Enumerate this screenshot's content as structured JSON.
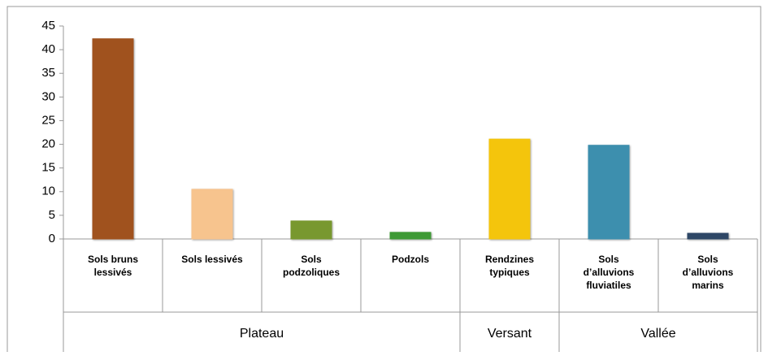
{
  "chart_data": {
    "type": "bar",
    "categories": [
      [
        "Sols bruns",
        "lessivés"
      ],
      [
        "Sols lessivés"
      ],
      [
        "Sols",
        "podzoliques"
      ],
      [
        "Podzols"
      ],
      [
        "Rendzines",
        "typiques"
      ],
      [
        "Sols",
        "d’alluvions",
        "fluviatiles"
      ],
      [
        "Sols",
        "d’alluvions",
        "marins"
      ]
    ],
    "values": [
      42.3,
      10.5,
      3.8,
      1.4,
      21.1,
      19.8,
      1.2
    ],
    "colors": [
      "#a0521e",
      "#f7c48e",
      "#78982f",
      "#3e9a35",
      "#f4c50c",
      "#3d8fae",
      "#2e4766"
    ],
    "groups": [
      {
        "label": "Plateau",
        "span": 4
      },
      {
        "label": "Versant",
        "span": 1
      },
      {
        "label": "Vallée",
        "span": 2
      }
    ],
    "ylim": [
      0,
      45
    ],
    "yticks": [
      0,
      5,
      10,
      15,
      20,
      25,
      30,
      35,
      40,
      45
    ]
  }
}
